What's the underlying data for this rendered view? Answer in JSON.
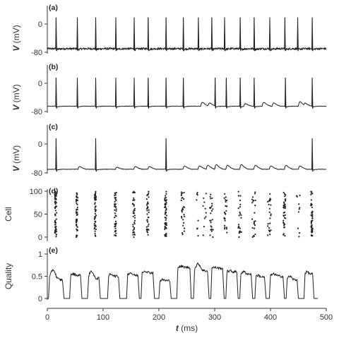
{
  "chart_data": {
    "type": "multi-panel",
    "x_axis": {
      "label_symbol": "t",
      "label_unit": "(ms)",
      "range": [
        0,
        500
      ],
      "ticks": [
        0,
        100,
        200,
        300,
        400,
        500
      ],
      "tick_labels": [
        "0",
        "100",
        "200",
        "300",
        "400",
        "500"
      ]
    },
    "panels": [
      {
        "id": "a",
        "label": "(a)",
        "type": "line",
        "ylabel_symbol": "V",
        "ylabel_unit": "(mV)",
        "ylim": [
          -80,
          0
        ],
        "yticks": [
          0,
          -80
        ],
        "ytick_labels": [
          "0",
          "-80"
        ],
        "rest_level": -70,
        "rest_noise": 3,
        "spike_peak": 18,
        "spike_times": [
          15,
          53,
          86,
          122,
          155,
          180,
          212,
          243,
          270,
          294,
          317,
          345,
          370,
          398,
          425,
          448,
          474
        ],
        "bumps": []
      },
      {
        "id": "b",
        "label": "(b)",
        "type": "line",
        "ylabel_symbol": "V",
        "ylabel_unit": "(mV)",
        "ylim": [
          -80,
          0
        ],
        "yticks": [
          0,
          -80
        ],
        "ytick_labels": [
          "0",
          "-80"
        ],
        "rest_level": -65,
        "rest_noise": 0.5,
        "spike_peak": 15,
        "spike_times": [
          15,
          53,
          86,
          122,
          155,
          180,
          212,
          243,
          300,
          320,
          345,
          370,
          426,
          474
        ],
        "bumps": [
          {
            "t": 275,
            "amp": 12
          },
          {
            "t": 288,
            "amp": 10
          },
          {
            "t": 352,
            "amp": 8
          },
          {
            "t": 385,
            "amp": 12
          },
          {
            "t": 403,
            "amp": 10
          },
          {
            "t": 450,
            "amp": 14
          },
          {
            "t": 460,
            "amp": 8
          }
        ]
      },
      {
        "id": "c",
        "label": "(c)",
        "type": "line",
        "ylabel_symbol": "V",
        "ylabel_unit": "(mV)",
        "ylim": [
          -80,
          0
        ],
        "yticks": [
          0,
          -80
        ],
        "ytick_labels": [
          "0",
          "-80"
        ],
        "rest_level": -70,
        "rest_noise": 0.5,
        "spike_peak": 15,
        "spike_times": [
          15,
          86,
          212,
          474
        ],
        "bumps": [
          {
            "t": 55,
            "amp": 8
          },
          {
            "t": 122,
            "amp": 6
          },
          {
            "t": 155,
            "amp": 8
          },
          {
            "t": 180,
            "amp": 8
          },
          {
            "t": 243,
            "amp": 10
          },
          {
            "t": 270,
            "amp": 10
          },
          {
            "t": 285,
            "amp": 12
          },
          {
            "t": 300,
            "amp": 14
          },
          {
            "t": 320,
            "amp": 12
          },
          {
            "t": 345,
            "amp": 14
          },
          {
            "t": 370,
            "amp": 12
          },
          {
            "t": 398,
            "amp": 10
          },
          {
            "t": 425,
            "amp": 12
          },
          {
            "t": 450,
            "amp": 10
          }
        ]
      },
      {
        "id": "d",
        "label": "(d)",
        "type": "scatter",
        "ylabel": "Cell",
        "ylim": [
          0,
          100
        ],
        "yticks": [
          0,
          50,
          100
        ],
        "ytick_labels": [
          "0",
          "50",
          "100"
        ],
        "volleys": [
          {
            "t": 15,
            "count": 55,
            "spread": 1.5
          },
          {
            "t": 53,
            "count": 48,
            "spread": 1.5
          },
          {
            "t": 86,
            "count": 50,
            "spread": 1.5
          },
          {
            "t": 122,
            "count": 42,
            "spread": 1.8
          },
          {
            "t": 155,
            "count": 38,
            "spread": 2
          },
          {
            "t": 180,
            "count": 36,
            "spread": 2
          },
          {
            "t": 212,
            "count": 52,
            "spread": 1.8
          },
          {
            "t": 243,
            "count": 28,
            "spread": 3
          },
          {
            "t": 270,
            "count": 8,
            "spread": 3
          },
          {
            "t": 282,
            "count": 10,
            "spread": 3
          },
          {
            "t": 294,
            "count": 24,
            "spread": 3
          },
          {
            "t": 320,
            "count": 24,
            "spread": 3
          },
          {
            "t": 345,
            "count": 24,
            "spread": 3
          },
          {
            "t": 370,
            "count": 22,
            "spread": 3
          },
          {
            "t": 398,
            "count": 24,
            "spread": 3
          },
          {
            "t": 425,
            "count": 38,
            "spread": 2
          },
          {
            "t": 450,
            "count": 10,
            "spread": 3
          },
          {
            "t": 474,
            "count": 52,
            "spread": 1.5
          }
        ]
      },
      {
        "id": "e",
        "label": "(e)",
        "type": "line",
        "ylabel": "Quality",
        "ylim": [
          0,
          1
        ],
        "yticks": [
          0,
          0.5,
          1
        ],
        "ytick_labels": [
          "0",
          "0.5",
          "1"
        ],
        "plateaus": [
          {
            "start": 2,
            "end": 30,
            "level": 0.42,
            "peak": 0.65
          },
          {
            "start": 40,
            "end": 62,
            "level": 0.52,
            "peak": 0.55
          },
          {
            "start": 72,
            "end": 95,
            "level": 0.45,
            "peak": 0.62
          },
          {
            "start": 108,
            "end": 130,
            "level": 0.5,
            "peak": 0.55
          },
          {
            "start": 142,
            "end": 165,
            "level": 0.52,
            "peak": 0.58
          },
          {
            "start": 168,
            "end": 192,
            "level": 0.58,
            "peak": 0.62
          },
          {
            "start": 200,
            "end": 222,
            "level": 0.4,
            "peak": 0.42
          },
          {
            "start": 232,
            "end": 258,
            "level": 0.7,
            "peak": 0.72
          },
          {
            "start": 262,
            "end": 290,
            "level": 0.62,
            "peak": 0.78
          },
          {
            "start": 293,
            "end": 317,
            "level": 0.68,
            "peak": 0.7
          },
          {
            "start": 320,
            "end": 342,
            "level": 0.6,
            "peak": 0.62
          },
          {
            "start": 345,
            "end": 368,
            "level": 0.55,
            "peak": 0.6
          },
          {
            "start": 372,
            "end": 392,
            "level": 0.48,
            "peak": 0.52
          },
          {
            "start": 398,
            "end": 425,
            "level": 0.5,
            "peak": 0.55
          },
          {
            "start": 428,
            "end": 450,
            "level": 0.42,
            "peak": 0.5
          },
          {
            "start": 460,
            "end": 478,
            "level": 0.55,
            "peak": 0.6
          }
        ]
      }
    ]
  }
}
